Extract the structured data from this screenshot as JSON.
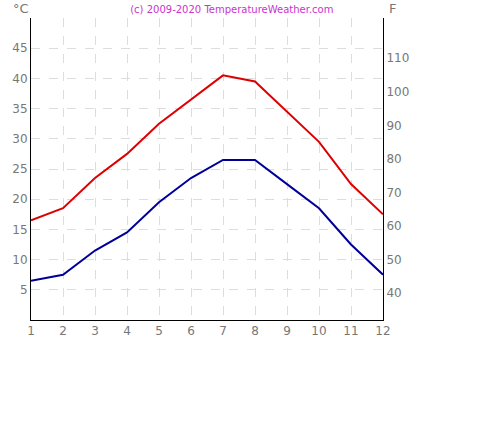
{
  "chart_data": {
    "type": "line",
    "title": "(c) 2009-2020 TemperatureWeather.com",
    "y_label": "°C",
    "y2_label": "F",
    "x": [
      1,
      2,
      3,
      4,
      5,
      6,
      7,
      8,
      9,
      10,
      11,
      12
    ],
    "xlim": [
      1,
      12
    ],
    "xticks": [
      1,
      2,
      3,
      4,
      5,
      6,
      7,
      8,
      9,
      10,
      11,
      12
    ],
    "ylim": [
      0,
      50
    ],
    "yticks": [
      5,
      10,
      15,
      20,
      25,
      30,
      35,
      40,
      45
    ],
    "y2lim": [
      32,
      122
    ],
    "y2ticks": [
      40,
      50,
      60,
      70,
      80,
      90,
      100,
      110
    ],
    "grid": true,
    "series": [
      {
        "color": "#dd0000",
        "values": [
          16.5,
          18.5,
          23.5,
          27.5,
          32.5,
          36.5,
          40.5,
          39.5,
          34.5,
          29.5,
          22.5,
          17.5
        ]
      },
      {
        "color": "#000099",
        "values": [
          6.5,
          7.5,
          11.5,
          14.5,
          19.5,
          23.5,
          26.5,
          26.5,
          22.5,
          18.5,
          12.5,
          7.5
        ]
      }
    ]
  }
}
